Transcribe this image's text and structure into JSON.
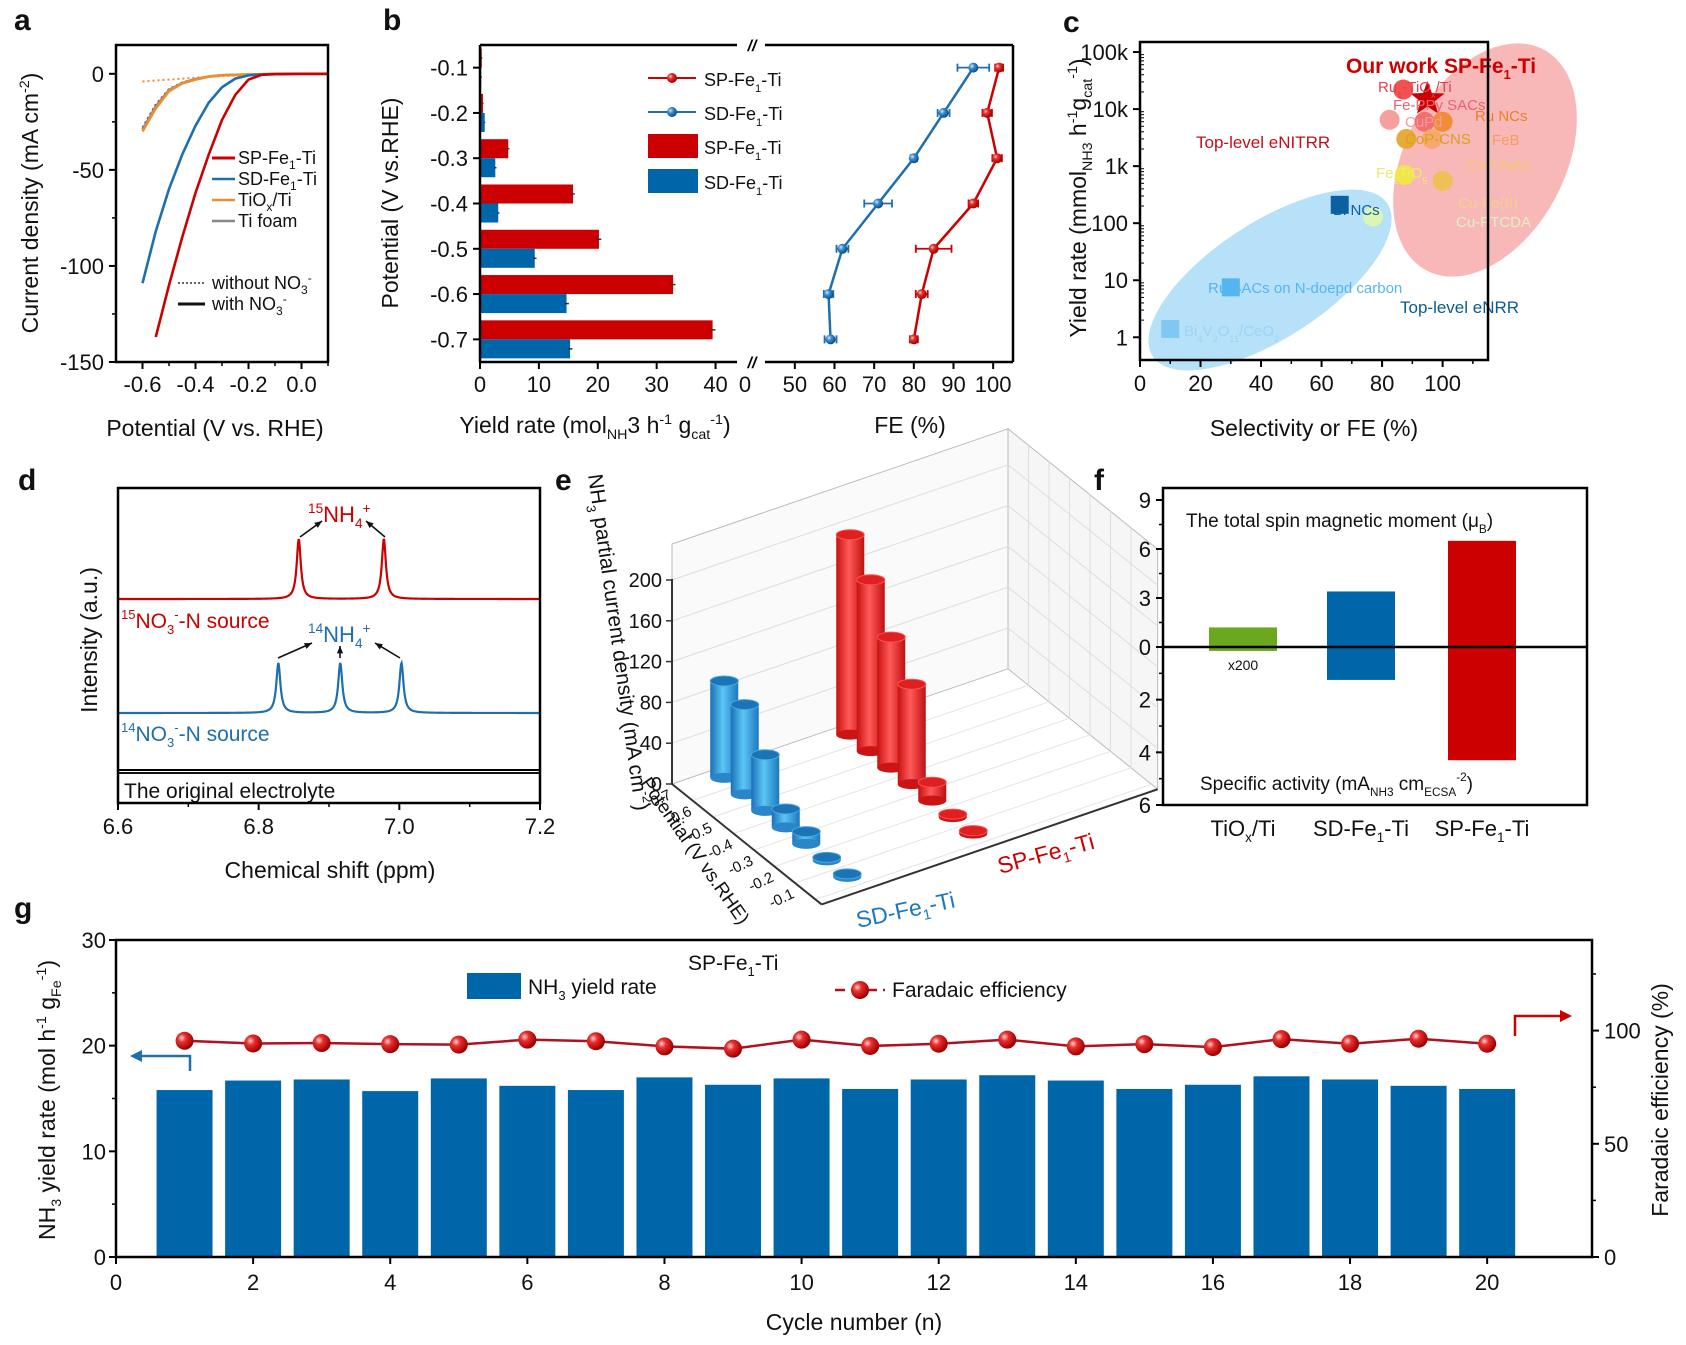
{
  "colors": {
    "red": "#cc0000",
    "blue": "#0066aa",
    "orange": "#f08c30",
    "gray": "#888888",
    "green": "#6aa820",
    "light_blue": "#7fc7f2",
    "pink_region": "#f7a6a6",
    "blue_region": "#a9dcf7"
  },
  "chart_data": [
    {
      "panel": "a",
      "type": "line",
      "xlabel": "Potential (V vs. RHE)",
      "ylabel": "Current density (mA cm-2)",
      "xlim": [
        -0.7,
        0.1
      ],
      "ylim": [
        -150,
        15
      ],
      "xticks": [
        "-0.6",
        "-0.4",
        "-0.2",
        "0.0"
      ],
      "yticks": [
        "0",
        "-50",
        "-100",
        "-150"
      ],
      "series": [
        {
          "name": "SP-Fe1-Ti",
          "style": "solid",
          "color": "#cc0000",
          "x": [
            -0.55,
            -0.5,
            -0.45,
            -0.4,
            -0.35,
            -0.3,
            -0.25,
            -0.2,
            -0.15,
            -0.1,
            0.0,
            0.1
          ],
          "y": [
            -137,
            -110,
            -85,
            -62,
            -42,
            -24,
            -11,
            -3,
            -0.5,
            -0.2,
            0,
            0
          ]
        },
        {
          "name": "SD-Fe1-Ti",
          "style": "solid",
          "color": "#1f6fad",
          "x": [
            -0.6,
            -0.55,
            -0.5,
            -0.45,
            -0.4,
            -0.35,
            -0.3,
            -0.25,
            -0.2,
            -0.15,
            -0.1,
            0.0,
            0.1
          ],
          "y": [
            -109,
            -82,
            -60,
            -42,
            -27,
            -15,
            -7,
            -2.5,
            -0.8,
            -0.3,
            -0.1,
            0,
            0
          ]
        },
        {
          "name": "TiOx/Ti",
          "style": "solid",
          "color": "#f08c30",
          "x": [
            -0.6,
            -0.55,
            -0.5,
            -0.45,
            -0.4,
            -0.35,
            -0.3,
            -0.2,
            -0.1,
            0.0,
            0.1
          ],
          "y": [
            -30,
            -18,
            -9,
            -5,
            -3,
            -1.5,
            -0.8,
            -0.3,
            -0.1,
            0,
            0
          ]
        },
        {
          "name": "Ti foam",
          "style": "solid",
          "color": "#888888",
          "x": [
            -0.6,
            -0.55,
            -0.5,
            -0.45,
            -0.4,
            -0.35,
            -0.3,
            -0.2,
            -0.1,
            0.0,
            0.1
          ],
          "y": [
            -29,
            -17,
            -8.5,
            -4.8,
            -2.8,
            -1.4,
            -0.7,
            -0.3,
            -0.1,
            0,
            0
          ]
        },
        {
          "name": "without NO3- (SP/SD)",
          "style": "dotted",
          "color": "#444444",
          "x": [
            -0.6,
            -0.55,
            -0.5,
            -0.45,
            -0.4,
            -0.35,
            -0.3,
            -0.2,
            -0.1,
            0.0,
            0.1
          ],
          "y": [
            -28,
            -16,
            -8,
            -4.5,
            -2.6,
            -1.3,
            -0.7,
            -0.3,
            -0.1,
            0,
            0
          ]
        },
        {
          "name": "without NO3- (TiOx/Ti foam)",
          "style": "dotted",
          "color": "#f08c30",
          "x": [
            -0.6,
            -0.5,
            -0.4,
            -0.3,
            -0.2,
            -0.1,
            0.0,
            0.1
          ],
          "y": [
            -4,
            -3,
            -2,
            -1.2,
            -0.6,
            -0.2,
            0,
            0
          ]
        }
      ],
      "legend": [
        "SP-Fe1-Ti",
        "SD-Fe1-Ti",
        "TiOx/Ti",
        "Ti foam"
      ],
      "style_legend": [
        "without NO3-",
        "with NO3-"
      ],
      "legend_position": "center-right"
    },
    {
      "panel": "b",
      "type": "bar",
      "orientation": "horizontal",
      "ylabel": "Potential (V vs.RHE)",
      "categories": [
        "-0.1",
        "-0.2",
        "-0.3",
        "-0.4",
        "-0.5",
        "-0.6",
        "-0.7"
      ],
      "left_xlabel": "Yield rate (mol NH3 h-1 g cat-1)",
      "left_xlim": [
        0,
        45
      ],
      "left_xticks": [
        "0",
        "10",
        "20",
        "30",
        "40"
      ],
      "right_xlabel": "FE (%)",
      "right_xlim": [
        0,
        105
      ],
      "right_xticks": [
        "0",
        "50",
        "60",
        "70",
        "80",
        "90",
        "100"
      ],
      "axis_break": true,
      "bar_series": [
        {
          "name": "SP-Fe1-Ti",
          "color": "#cc0000",
          "values": [
            0.3,
            0.5,
            4.8,
            15.8,
            20.2,
            32.8,
            39.5
          ],
          "errors": [
            0.1,
            0.1,
            0.2,
            0.3,
            0.4,
            0.4,
            0.5
          ]
        },
        {
          "name": "SD-Fe1-Ti",
          "color": "#0066aa",
          "values": [
            0.2,
            0.8,
            2.6,
            3.1,
            9.3,
            14.7,
            15.3
          ],
          "errors": [
            0.1,
            0.1,
            0.2,
            0.2,
            0.3,
            0.4,
            0.4
          ]
        }
      ],
      "line_series": [
        {
          "name": "SP-Fe1-Ti",
          "color": "#cc0000",
          "values": [
            101.5,
            98.5,
            101,
            95,
            85,
            82,
            80
          ],
          "errors": [
            1,
            1.2,
            1.2,
            1.2,
            4.5,
            1.5,
            1
          ]
        },
        {
          "name": "SD-Fe1-Ti",
          "color": "#1f6fad",
          "values": [
            95,
            87.5,
            80,
            71,
            62,
            58.5,
            59
          ],
          "errors": [
            4,
            1.5,
            0.8,
            3.5,
            1.5,
            1.2,
            1.5
          ]
        }
      ],
      "legend": [
        "SP-Fe1-Ti (FE)",
        "SD-Fe1-Ti (FE)",
        "SP-Fe1-Ti (yield)",
        "SD-Fe1-Ti (yield)"
      ],
      "legend_position": "top-center"
    },
    {
      "panel": "c",
      "type": "scatter",
      "xlabel": "Selectivity or FE (%)",
      "ylabel": "Yield rate (mmol NH3 h-1 g cat-1)",
      "xlim": [
        0,
        115
      ],
      "ylim_log": [
        0.4,
        150000
      ],
      "xticks": [
        "0",
        "20",
        "40",
        "60",
        "80",
        "100"
      ],
      "yticks": [
        "1",
        "10",
        "100",
        "1k",
        "10k",
        "100k"
      ],
      "points": [
        {
          "label": "Our work SP-Fe1-Ti",
          "x": 95,
          "y": 15000,
          "marker": "star",
          "color": "#cc0000"
        },
        {
          "label": "Ru1-TiOx/Ti",
          "x": 87,
          "y": 22000,
          "marker": "circle",
          "color": "#f04848"
        },
        {
          "label": "Fe-PPy SACs",
          "x": 94,
          "y": 6000,
          "marker": "circle",
          "color": "#f26a6a"
        },
        {
          "label": "CuPd",
          "x": 82.5,
          "y": 6500,
          "marker": "circle",
          "color": "#f59a9a"
        },
        {
          "label": "Ru NCs",
          "x": 100,
          "y": 6000,
          "marker": "circle",
          "color": "#f08a30"
        },
        {
          "label": "CoP-CNS",
          "x": 88,
          "y": 3000,
          "marker": "circle",
          "color": "#e5a830"
        },
        {
          "label": "FeB",
          "x": 96.5,
          "y": 3000,
          "marker": "circle",
          "color": "#f4a868"
        },
        {
          "label": "Fe2TiO5",
          "x": 87.5,
          "y": 700,
          "marker": "circle",
          "color": "#f0e840"
        },
        {
          "label": "CoP-NAs",
          "x": 100,
          "y": 550,
          "marker": "circle",
          "color": "#edc050"
        },
        {
          "label": "Cu-PTCDA",
          "x": 77,
          "y": 130,
          "marker": "circle",
          "color": "#dcf5b0"
        },
        {
          "label": "Bi NCs",
          "x": 66,
          "y": 210,
          "marker": "square",
          "color": "#0a60a0"
        },
        {
          "label": "Ru SACs on N-doepd carbon",
          "x": 30,
          "y": 7.5,
          "marker": "square",
          "color": "#55b5ee"
        },
        {
          "label": "Bi4V2O11/CeO2",
          "x": 10,
          "y": 1.4,
          "marker": "square",
          "color": "#80c8f2"
        }
      ],
      "annotations": [
        "Top-level eNITRR",
        "Top-level eNRR",
        "Our work SP-Fe1-Ti"
      ],
      "extra_labels": [
        "Cu-Fe(II)"
      ]
    },
    {
      "panel": "d",
      "type": "line",
      "xlabel": "Chemical shift (ppm)",
      "ylabel": "Intensity (a.u.)",
      "xlim": [
        6.6,
        7.2
      ],
      "xticks": [
        "6.6",
        "6.8",
        "7.0",
        "7.2"
      ],
      "series": [
        {
          "name": "15NO3--N source",
          "color": "#cc0000",
          "peaks": [
            6.857,
            6.978
          ]
        },
        {
          "name": "14NO3--N source",
          "color": "#1f6fad",
          "peaks": [
            6.828,
            6.916,
            7.003
          ]
        },
        {
          "name": "The original electrolyte",
          "color": "#111111",
          "peaks": []
        }
      ],
      "annotations": [
        "15NH4+",
        "14NH4+"
      ]
    },
    {
      "panel": "e",
      "type": "bar",
      "subtype": "3d",
      "zlabel": "NH3 partial current density (mA cm-2)",
      "ylabel": "Potential (V vs.RHE)",
      "zlim": [
        0,
        200
      ],
      "zticks": [
        "0",
        "40",
        "80",
        "120",
        "160",
        "200"
      ],
      "categories": [
        "-0.7",
        "-0.6",
        "-0.5",
        "-0.4",
        "-0.3",
        "-0.2",
        "-0.1"
      ],
      "series": [
        {
          "name": "SD-Fe1-Ti",
          "color": "#1a8fd8",
          "values": [
            95,
            88,
            55,
            18,
            12,
            2,
            1
          ]
        },
        {
          "name": "SP-Fe1-Ti",
          "color": "#e82020",
          "values": [
            196,
            168,
            128,
            98,
            18,
            3,
            2
          ]
        }
      ]
    },
    {
      "panel": "f",
      "type": "bar",
      "categories": [
        "TiOx/Ti",
        "SD-Fe1-Ti",
        "SP-Fe1-Ti"
      ],
      "upper_label": "The total spin magnetic moment (μB)",
      "lower_label": "Specific activity (mA NH3 cm ECSA -2)",
      "upper_ylim": [
        0,
        9
      ],
      "upper_yticks": [
        "0",
        "3",
        "6",
        "9"
      ],
      "lower_ylim": [
        0,
        6
      ],
      "lower_yticks": [
        "2",
        "4",
        "6"
      ],
      "colors": [
        "#6aa820",
        "#0066aa",
        "#cc0000"
      ],
      "upper_values": [
        1.2,
        3.4,
        6.5
      ],
      "lower_values": [
        0.15,
        1.25,
        4.3
      ],
      "note": "x200"
    },
    {
      "panel": "g",
      "type": "bar",
      "title": "SP-Fe1-Ti",
      "xlabel": "Cycle number (n)",
      "ylabel": "NH3 yield rate (mol h-1 gFe-1)",
      "y2label": "Faradaic efficiency (%)",
      "xlim": [
        0,
        21.5
      ],
      "ylim": [
        0,
        30
      ],
      "y2lim": [
        0,
        140
      ],
      "xticks": [
        "0",
        "2",
        "4",
        "6",
        "8",
        "10",
        "12",
        "14",
        "16",
        "18",
        "20"
      ],
      "yticks": [
        "0",
        "10",
        "20",
        "30"
      ],
      "y2ticks": [
        "0",
        "50",
        "100"
      ],
      "categories": [
        1,
        2,
        3,
        4,
        5,
        6,
        7,
        8,
        9,
        10,
        11,
        12,
        13,
        14,
        15,
        16,
        17,
        18,
        19,
        20
      ],
      "series": [
        {
          "name": "NH3 yield rate",
          "type": "bar",
          "color": "#0066aa",
          "values": [
            15.8,
            16.7,
            16.8,
            15.7,
            16.9,
            16.2,
            15.8,
            17.0,
            16.3,
            16.9,
            15.9,
            16.8,
            17.2,
            16.7,
            15.9,
            16.3,
            17.1,
            16.8,
            16.2,
            15.9
          ]
        },
        {
          "name": "Faradaic efficiency",
          "type": "line",
          "color": "#cc0000",
          "values": [
            95.5,
            94.3,
            94.5,
            94,
            93.8,
            96,
            95.3,
            93,
            92,
            96,
            93.2,
            94.2,
            96,
            93,
            94,
            92.7,
            96.2,
            94.2,
            96.4,
            94.2
          ]
        }
      ],
      "legend": [
        "NH3 yield rate",
        "Faradaic efficiency"
      ],
      "legend_position": "top-center"
    }
  ],
  "labels": {
    "panel_a": "a",
    "panel_b": "b",
    "panel_c": "c",
    "panel_d": "d",
    "panel_e": "e",
    "panel_f": "f",
    "panel_g": "g",
    "a_legend": [
      "SP-Fe",
      "1",
      "-Ti",
      "SD-Fe",
      "1",
      "-Ti",
      "TiO",
      "x",
      "/Ti",
      "Ti foam"
    ],
    "a_style_without": "without NO",
    "a_style_with": "with NO",
    "sub3": "3",
    "supminus": "-",
    "c_ourwork": "Our work SP-Fe",
    "d_15src": "NO",
    "d_src_suffix": "-N source",
    "d_orig": "The original electrolyte",
    "d_nh": "NH",
    "d_15": "15",
    "d_14": "14",
    "d_plus": "+",
    "d_4": "4",
    "f_x200": "x200",
    "g_title_main": "SP-Fe",
    "g_legend_bar": "NH",
    "g_legend_bar_suffix": " yield rate",
    "g_legend_line": "Faradaic efficiency"
  }
}
